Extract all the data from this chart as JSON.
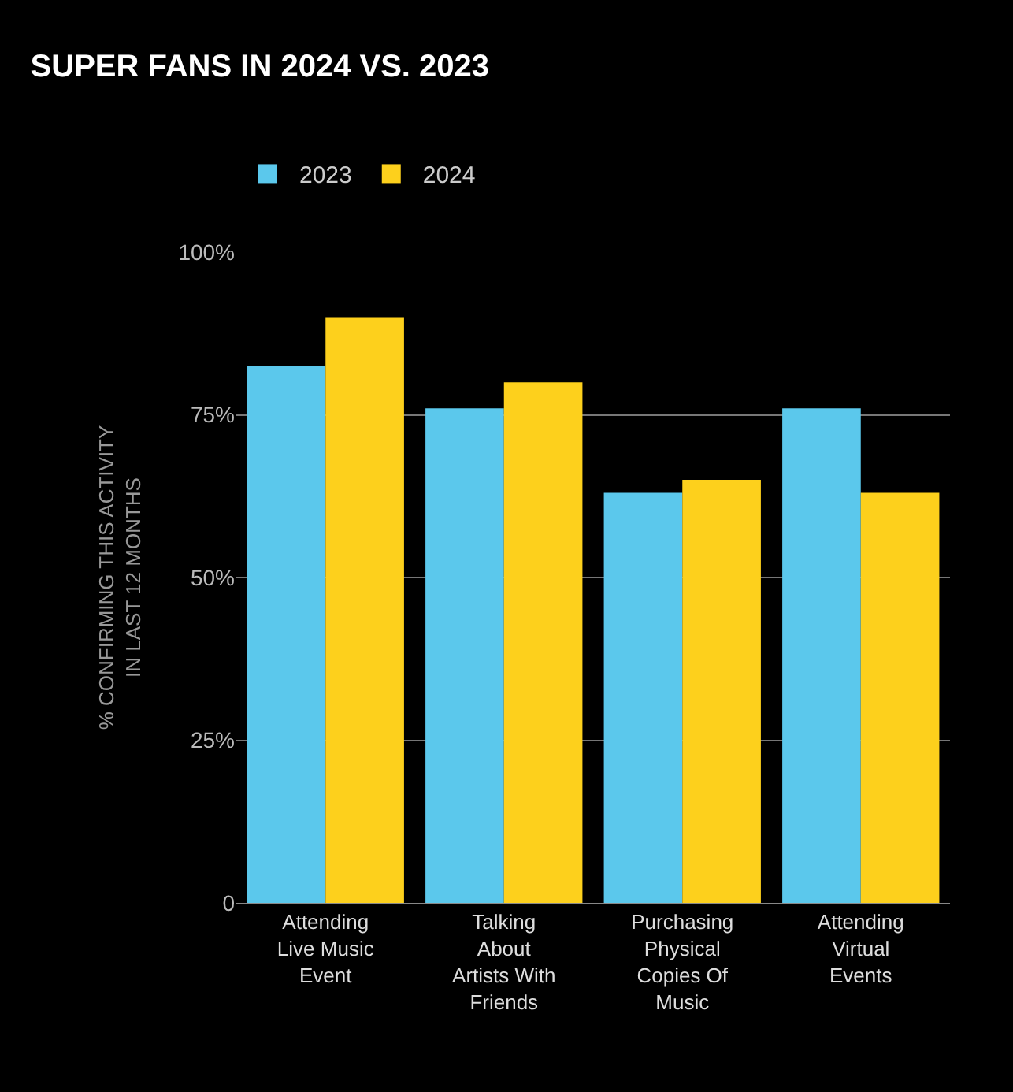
{
  "chart_data": {
    "type": "bar",
    "title": "SUPER FANS IN 2024 VS. 2023",
    "ylabel": "% CONFIRMING THIS ACTIVITY\nIN LAST 12 MONTHS",
    "categories": [
      "Attending\nLive Music\nEvent",
      "Talking\nAbout\nArtists With\nFriends",
      "Purchasing\nPhysical\nCopies Of\nMusic",
      "Attending\nVirtual\nEvents"
    ],
    "series": [
      {
        "name": "2023",
        "color": "#5bc8ec",
        "values": [
          82.5,
          76,
          63,
          76
        ]
      },
      {
        "name": "2024",
        "color": "#fdd01c",
        "values": [
          90,
          80,
          65,
          63
        ]
      }
    ],
    "ylim": [
      0,
      100
    ],
    "yticks": [
      0,
      {
        "value": 25,
        "label": "25%"
      },
      {
        "value": 50,
        "label": "50%"
      },
      {
        "value": 75,
        "label": "75%"
      },
      {
        "value": 100,
        "label": "100%"
      }
    ],
    "grid": "y",
    "legend": "top left"
  }
}
